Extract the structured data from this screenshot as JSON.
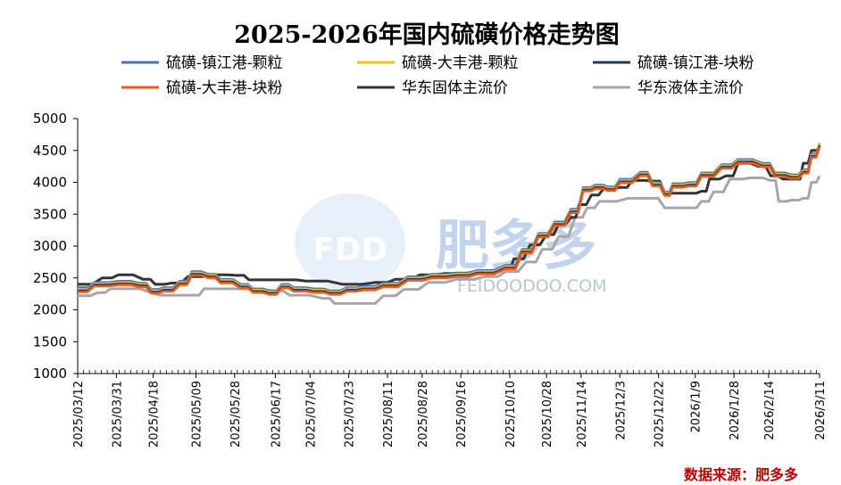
{
  "chart_data": {
    "type": "line",
    "title": "2025-2026年国内硫磺价格走势图",
    "ylim": [
      1000,
      5000
    ],
    "yticks": [
      1000,
      1500,
      2000,
      2500,
      3000,
      3500,
      4000,
      4500,
      5000
    ],
    "x_range": [
      0,
      364
    ],
    "xtick_labels": [
      "2025/03/12",
      "2025/03/31",
      "2025/04/18",
      "2025/05/09",
      "2025/05/28",
      "2025/06/17",
      "2025/07/04",
      "2025/07/23",
      "2025/08/11",
      "2025/08/28",
      "2025/09/16",
      "2025/10/10",
      "2025/10/28",
      "2025/11/14",
      "2025/12/3",
      "2025/12/22",
      "2026/1/9",
      "2026/1/28",
      "2026/2/14",
      "2026/3/11"
    ],
    "xtick_positions": [
      0,
      19,
      37,
      58,
      77,
      97,
      114,
      133,
      152,
      169,
      188,
      212,
      230,
      247,
      266,
      285,
      303,
      322,
      339,
      364
    ],
    "legend_placement": "top",
    "series": [
      {
        "name": "硫磺-镇江港-颗粒",
        "color": "#4472c4",
        "points": [
          [
            0,
            2350
          ],
          [
            8,
            2430
          ],
          [
            20,
            2450
          ],
          [
            30,
            2420
          ],
          [
            36,
            2320
          ],
          [
            42,
            2350
          ],
          [
            50,
            2450
          ],
          [
            56,
            2600
          ],
          [
            64,
            2560
          ],
          [
            70,
            2480
          ],
          [
            80,
            2400
          ],
          [
            86,
            2330
          ],
          [
            94,
            2300
          ],
          [
            100,
            2400
          ],
          [
            106,
            2350
          ],
          [
            116,
            2330
          ],
          [
            124,
            2300
          ],
          [
            132,
            2350
          ],
          [
            140,
            2370
          ],
          [
            150,
            2420
          ],
          [
            162,
            2520
          ],
          [
            174,
            2560
          ],
          [
            186,
            2580
          ],
          [
            196,
            2620
          ],
          [
            210,
            2700
          ],
          [
            218,
            2950
          ],
          [
            226,
            3200
          ],
          [
            234,
            3380
          ],
          [
            242,
            3580
          ],
          [
            248,
            3920
          ],
          [
            254,
            3960
          ],
          [
            260,
            3930
          ],
          [
            266,
            4050
          ],
          [
            276,
            4160
          ],
          [
            282,
            4000
          ],
          [
            288,
            3850
          ],
          [
            292,
            3980
          ],
          [
            300,
            4000
          ],
          [
            306,
            4150
          ],
          [
            316,
            4280
          ],
          [
            324,
            4360
          ],
          [
            336,
            4300
          ],
          [
            342,
            4150
          ],
          [
            350,
            4120
          ],
          [
            356,
            4200
          ],
          [
            360,
            4450
          ],
          [
            364,
            4600
          ]
        ]
      },
      {
        "name": "硫磺-大丰港-颗粒",
        "color": "#ffc000",
        "points": [
          [
            0,
            2320
          ],
          [
            8,
            2410
          ],
          [
            20,
            2430
          ],
          [
            30,
            2400
          ],
          [
            36,
            2300
          ],
          [
            42,
            2330
          ],
          [
            50,
            2430
          ],
          [
            56,
            2580
          ],
          [
            64,
            2540
          ],
          [
            70,
            2460
          ],
          [
            80,
            2380
          ],
          [
            86,
            2310
          ],
          [
            94,
            2280
          ],
          [
            100,
            2380
          ],
          [
            106,
            2330
          ],
          [
            116,
            2310
          ],
          [
            124,
            2280
          ],
          [
            132,
            2330
          ],
          [
            140,
            2350
          ],
          [
            150,
            2400
          ],
          [
            162,
            2500
          ],
          [
            174,
            2540
          ],
          [
            186,
            2560
          ],
          [
            196,
            2600
          ],
          [
            210,
            2680
          ],
          [
            218,
            2930
          ],
          [
            226,
            3180
          ],
          [
            234,
            3360
          ],
          [
            242,
            3560
          ],
          [
            248,
            3900
          ],
          [
            254,
            3940
          ],
          [
            260,
            3910
          ],
          [
            266,
            4030
          ],
          [
            276,
            4140
          ],
          [
            282,
            3980
          ],
          [
            288,
            3830
          ],
          [
            292,
            3960
          ],
          [
            300,
            3980
          ],
          [
            306,
            4130
          ],
          [
            316,
            4260
          ],
          [
            324,
            4340
          ],
          [
            336,
            4280
          ],
          [
            342,
            4130
          ],
          [
            350,
            4100
          ],
          [
            356,
            4180
          ],
          [
            360,
            4430
          ],
          [
            364,
            4620
          ]
        ]
      },
      {
        "name": "硫磺-镇江港-块粉",
        "color": "#1f3864",
        "points": [
          [
            0,
            2300
          ],
          [
            8,
            2390
          ],
          [
            20,
            2410
          ],
          [
            30,
            2380
          ],
          [
            36,
            2280
          ],
          [
            42,
            2310
          ],
          [
            50,
            2410
          ],
          [
            56,
            2560
          ],
          [
            64,
            2520
          ],
          [
            70,
            2440
          ],
          [
            80,
            2360
          ],
          [
            86,
            2290
          ],
          [
            94,
            2260
          ],
          [
            100,
            2360
          ],
          [
            106,
            2310
          ],
          [
            116,
            2290
          ],
          [
            124,
            2260
          ],
          [
            132,
            2310
          ],
          [
            140,
            2330
          ],
          [
            150,
            2380
          ],
          [
            162,
            2480
          ],
          [
            174,
            2520
          ],
          [
            186,
            2540
          ],
          [
            196,
            2580
          ],
          [
            210,
            2660
          ],
          [
            218,
            2910
          ],
          [
            226,
            3160
          ],
          [
            234,
            3340
          ],
          [
            242,
            3540
          ],
          [
            248,
            3880
          ],
          [
            254,
            3920
          ],
          [
            260,
            3890
          ],
          [
            266,
            4010
          ],
          [
            276,
            4120
          ],
          [
            282,
            3960
          ],
          [
            288,
            3810
          ],
          [
            292,
            3940
          ],
          [
            300,
            3960
          ],
          [
            306,
            4110
          ],
          [
            316,
            4240
          ],
          [
            324,
            4320
          ],
          [
            336,
            4260
          ],
          [
            342,
            4110
          ],
          [
            350,
            4080
          ],
          [
            356,
            4160
          ],
          [
            360,
            4410
          ],
          [
            364,
            4580
          ]
        ]
      },
      {
        "name": "硫磺-大丰港-块粉",
        "color": "#ed5a1e",
        "points": [
          [
            0,
            2280
          ],
          [
            8,
            2370
          ],
          [
            20,
            2390
          ],
          [
            30,
            2360
          ],
          [
            36,
            2260
          ],
          [
            42,
            2290
          ],
          [
            50,
            2390
          ],
          [
            56,
            2540
          ],
          [
            64,
            2500
          ],
          [
            70,
            2420
          ],
          [
            80,
            2340
          ],
          [
            86,
            2270
          ],
          [
            94,
            2240
          ],
          [
            100,
            2340
          ],
          [
            106,
            2290
          ],
          [
            116,
            2270
          ],
          [
            124,
            2240
          ],
          [
            132,
            2290
          ],
          [
            140,
            2310
          ],
          [
            150,
            2360
          ],
          [
            162,
            2460
          ],
          [
            174,
            2500
          ],
          [
            186,
            2520
          ],
          [
            196,
            2560
          ],
          [
            210,
            2640
          ],
          [
            218,
            2890
          ],
          [
            226,
            3140
          ],
          [
            234,
            3320
          ],
          [
            242,
            3520
          ],
          [
            248,
            3860
          ],
          [
            254,
            3900
          ],
          [
            260,
            3870
          ],
          [
            266,
            3990
          ],
          [
            276,
            4100
          ],
          [
            282,
            3940
          ],
          [
            288,
            3790
          ],
          [
            292,
            3920
          ],
          [
            300,
            3940
          ],
          [
            306,
            4090
          ],
          [
            316,
            4220
          ],
          [
            324,
            4300
          ],
          [
            336,
            4240
          ],
          [
            342,
            4090
          ],
          [
            350,
            4060
          ],
          [
            356,
            4140
          ],
          [
            360,
            4390
          ],
          [
            364,
            4560
          ]
        ]
      },
      {
        "name": "华东固体主流价",
        "color": "#333333",
        "points": [
          [
            0,
            2400
          ],
          [
            12,
            2500
          ],
          [
            20,
            2550
          ],
          [
            32,
            2480
          ],
          [
            38,
            2400
          ],
          [
            46,
            2420
          ],
          [
            54,
            2520
          ],
          [
            66,
            2550
          ],
          [
            78,
            2540
          ],
          [
            84,
            2470
          ],
          [
            100,
            2470
          ],
          [
            112,
            2450
          ],
          [
            130,
            2400
          ],
          [
            146,
            2430
          ],
          [
            156,
            2480
          ],
          [
            168,
            2550
          ],
          [
            180,
            2570
          ],
          [
            196,
            2600
          ],
          [
            210,
            2650
          ],
          [
            214,
            2800
          ],
          [
            222,
            3020
          ],
          [
            230,
            3180
          ],
          [
            236,
            3350
          ],
          [
            242,
            3450
          ],
          [
            246,
            3650
          ],
          [
            252,
            3800
          ],
          [
            258,
            3900
          ],
          [
            266,
            3920
          ],
          [
            272,
            4030
          ],
          [
            282,
            4020
          ],
          [
            288,
            3830
          ],
          [
            300,
            3830
          ],
          [
            306,
            3860
          ],
          [
            310,
            4050
          ],
          [
            318,
            4100
          ],
          [
            324,
            4300
          ],
          [
            334,
            4250
          ],
          [
            340,
            4100
          ],
          [
            346,
            4050
          ],
          [
            352,
            4050
          ],
          [
            356,
            4300
          ],
          [
            360,
            4500
          ],
          [
            364,
            4550
          ]
        ]
      },
      {
        "name": "华东液体主流价",
        "color": "#a6a6a6",
        "points": [
          [
            0,
            2220
          ],
          [
            10,
            2270
          ],
          [
            16,
            2330
          ],
          [
            40,
            2230
          ],
          [
            56,
            2230
          ],
          [
            62,
            2330
          ],
          [
            96,
            2300
          ],
          [
            104,
            2230
          ],
          [
            120,
            2180
          ],
          [
            126,
            2100
          ],
          [
            140,
            2100
          ],
          [
            150,
            2220
          ],
          [
            160,
            2320
          ],
          [
            172,
            2430
          ],
          [
            186,
            2480
          ],
          [
            200,
            2520
          ],
          [
            210,
            2600
          ],
          [
            220,
            2750
          ],
          [
            228,
            2950
          ],
          [
            236,
            3150
          ],
          [
            244,
            3450
          ],
          [
            250,
            3600
          ],
          [
            256,
            3700
          ],
          [
            270,
            3750
          ],
          [
            280,
            3750
          ],
          [
            288,
            3600
          ],
          [
            300,
            3600
          ],
          [
            306,
            3700
          ],
          [
            312,
            3850
          ],
          [
            320,
            4050
          ],
          [
            330,
            4070
          ],
          [
            340,
            4030
          ],
          [
            344,
            3700
          ],
          [
            350,
            3720
          ],
          [
            356,
            3750
          ],
          [
            360,
            4000
          ],
          [
            364,
            4100
          ]
        ]
      }
    ]
  },
  "source_label": "数据来源：肥多多",
  "watermark": {
    "logo_text": "FDD",
    "brand": "肥多多",
    "url": "FEIDOODOO.COM"
  }
}
